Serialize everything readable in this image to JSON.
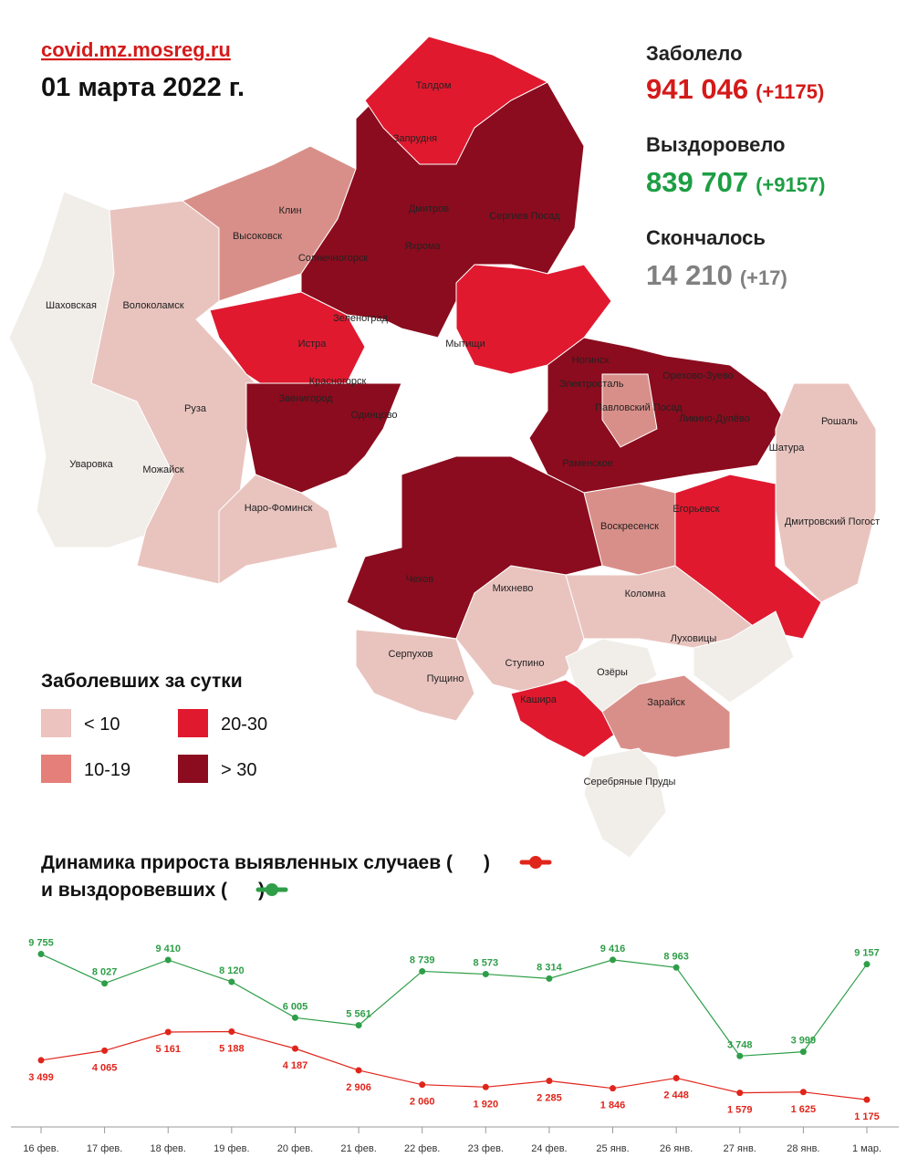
{
  "header": {
    "site": "covid.mz.mosreg.ru",
    "date": "01 марта 2022 г."
  },
  "stats": [
    {
      "label": "Заболело",
      "value": "941 046",
      "delta": "(+1175)"
    },
    {
      "label": "Выздоровело",
      "value": "839 707",
      "delta": "(+9157)"
    },
    {
      "label": "Скончалось",
      "value": "14 210",
      "delta": "(+17)"
    }
  ],
  "map": {
    "legend_title": "Заболевших за сутки",
    "legend": [
      {
        "label": "< 10",
        "color": "#ecc3bf"
      },
      {
        "label": "10-19",
        "color": "#e57f7a"
      },
      {
        "label": "20-30",
        "color": "#e0192f"
      },
      {
        "label": "> 30",
        "color": "#8b0c1e"
      }
    ],
    "places": [
      "Талдом",
      "Запрудня",
      "Клин",
      "Высоковск",
      "Дмитров",
      "Сергиев Посад",
      "Яхрома",
      "Солнечногорск",
      "Шаховская",
      "Волоколамск",
      "Зеленоград",
      "Истра",
      "Мытищи",
      "Ногинск",
      "Красногорск",
      "Электросталь",
      "Орехово-Зуево",
      "Звенигород",
      "Павловский Посад",
      "Руза",
      "Одинцово",
      "Ликино-Дулёво",
      "Рошаль",
      "Раменское",
      "Шатура",
      "Уваровка",
      "Можайск",
      "Наро-Фоминск",
      "Егорьевск",
      "Воскресенск",
      "Дмитровский Погост",
      "Чехов",
      "Михнево",
      "Коломна",
      "Луховицы",
      "Серпухов",
      "Пущино",
      "Ступино",
      "Озёры",
      "Кашира",
      "Зарайск",
      "Серебряные Пруды"
    ]
  },
  "chart_data": {
    "type": "line",
    "title": [
      "Динамика прироста выявленных случаев (",
      ")"
    ],
    "subtitle": [
      "и выздоровевших (",
      ")"
    ],
    "categories": [
      "16 фев.",
      "17 фев.",
      "18 фев.",
      "19 фев.",
      "20 фев.",
      "21 фев.",
      "22 фев.",
      "23 фев.",
      "24 фев.",
      "25 янв.",
      "26 янв.",
      "27 янв.",
      "28 янв.",
      "1 мар."
    ],
    "ylim": [
      0,
      10000
    ],
    "series": [
      {
        "color": "#e0251b",
        "values": [
          3499,
          4065,
          5161,
          5188,
          4187,
          2906,
          2060,
          1920,
          2285,
          1846,
          2448,
          1579,
          1625,
          1175
        ],
        "value_labels": [
          "3 499",
          "4 065",
          "5 161",
          "5 188",
          "4 187",
          "2 906",
          "2 060",
          "1 920",
          "2 285",
          "1 846",
          "2 448",
          "1 579",
          "1 625",
          "1 175"
        ]
      },
      {
        "color": "#2e9e48",
        "values": [
          9755,
          8027,
          9410,
          8120,
          6005,
          5561,
          8739,
          8573,
          8314,
          9416,
          8963,
          3748,
          3999,
          9157
        ],
        "value_labels": [
          "9 755",
          "8 027",
          "9 410",
          "8 120",
          "6 005",
          "5 561",
          "8 739",
          "8 573",
          "8 314",
          "9 416",
          "8 963",
          "3 748",
          "3 999",
          "9 157"
        ]
      }
    ]
  }
}
